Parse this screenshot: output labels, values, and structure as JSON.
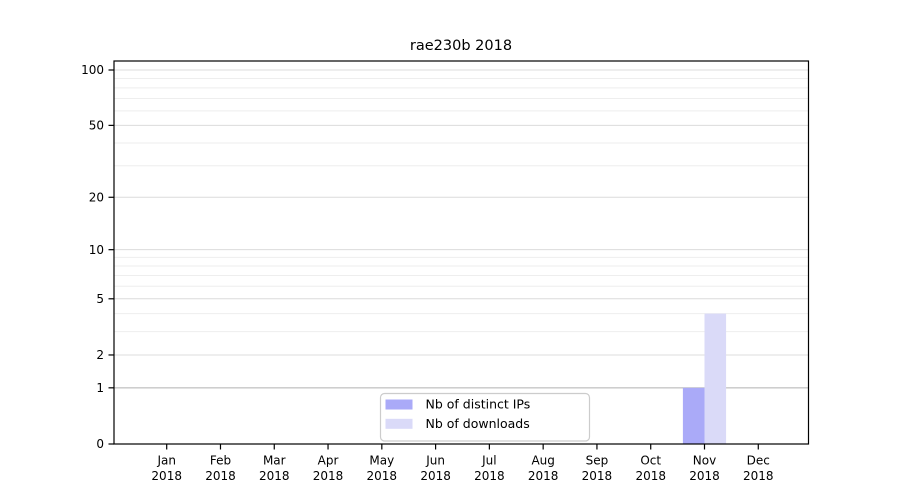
{
  "title": "rae230b 2018",
  "axes": {
    "y_tick_labels": [
      "0",
      "1",
      "2",
      "5",
      "10",
      "20",
      "50",
      "100"
    ],
    "x_month_labels": [
      "Jan",
      "Feb",
      "Mar",
      "Apr",
      "May",
      "Jun",
      "Jul",
      "Aug",
      "Sep",
      "Oct",
      "Nov",
      "Dec"
    ],
    "x_year_label": "2018"
  },
  "legend": {
    "items": [
      {
        "label": "Nb of distinct IPs",
        "color": "#aaaaf8"
      },
      {
        "label": "Nb of downloads",
        "color": "#dadaf8"
      }
    ]
  },
  "chart_data": {
    "type": "bar",
    "title": "rae230b 2018",
    "categories": [
      "Jan 2018",
      "Feb 2018",
      "Mar 2018",
      "Apr 2018",
      "May 2018",
      "Jun 2018",
      "Jul 2018",
      "Aug 2018",
      "Sep 2018",
      "Oct 2018",
      "Nov 2018",
      "Dec 2018"
    ],
    "series": [
      {
        "name": "Nb of distinct IPs",
        "color": "#aaaaf8",
        "values": [
          0,
          0,
          0,
          0,
          0,
          0,
          0,
          0,
          0,
          0,
          1,
          0
        ]
      },
      {
        "name": "Nb of downloads",
        "color": "#dadaf8",
        "values": [
          0,
          0,
          0,
          0,
          0,
          0,
          0,
          0,
          0,
          0,
          4,
          0
        ]
      }
    ],
    "yscale": "log1p",
    "ylabel": "",
    "xlabel": "",
    "y_ticks": [
      0,
      1,
      2,
      5,
      10,
      20,
      50,
      100
    ],
    "y_minor_ticks": [
      3,
      4,
      6,
      7,
      8,
      9,
      30,
      40,
      60,
      70,
      80,
      90
    ],
    "ylim": [
      0,
      112
    ],
    "grid": true,
    "legend_position": "lower center"
  }
}
